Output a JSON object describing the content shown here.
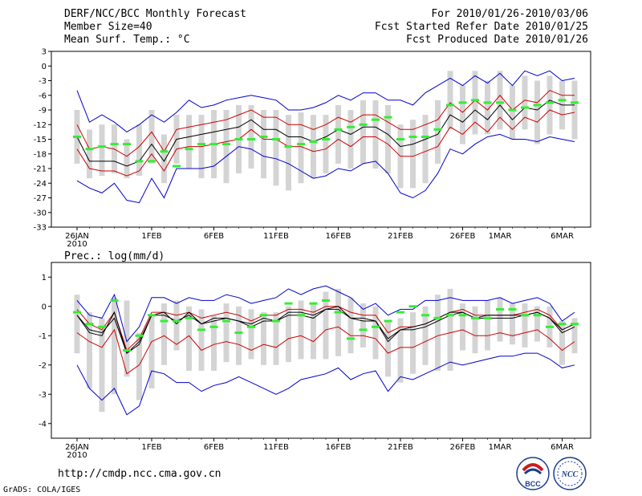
{
  "header": {
    "left": [
      "DERF/NCC/BCC Monthly Forecast",
      "Member Size=40",
      "Mean Surf. Temp.: °C"
    ],
    "right": [
      "For 2010/01/26-2010/03/06",
      "Fcst Started Refer Date 2010/01/25",
      "Fcst Produced Date 2010/01/26"
    ]
  },
  "footer": {
    "url": "http://cmdp.ncc.cma.gov.cn",
    "credit": "GrADS: COLA/IGES",
    "logo_left_text": "BCC",
    "logo_right_text": "NCC"
  },
  "colors": {
    "envelope": "#0000cc",
    "spread": "#cc0000",
    "mean": "#000000",
    "observed": "#33ee33",
    "boxes": "#d4d4d4"
  },
  "chart_data": [
    {
      "type": "line",
      "title": "Mean Surf. Temp.: °C",
      "ylim": [
        -33,
        3
      ],
      "yticks": [
        3,
        0,
        -3,
        -6,
        -9,
        -12,
        -15,
        -18,
        -21,
        -24,
        -27,
        -30,
        -33
      ],
      "xlim": [
        0,
        40
      ],
      "xticks": [
        {
          "day": 0,
          "label": "26JAN",
          "sub": "2010"
        },
        {
          "day": 6,
          "label": "1FEB"
        },
        {
          "day": 11,
          "label": "6FEB"
        },
        {
          "day": 16,
          "label": "11FEB"
        },
        {
          "day": 21,
          "label": "16FEB"
        },
        {
          "day": 26,
          "label": "21FEB"
        },
        {
          "day": 31,
          "label": "26FEB"
        },
        {
          "day": 34,
          "label": "1MAR"
        },
        {
          "day": 39,
          "label": "6MAR"
        }
      ],
      "series": [
        {
          "name": "ensemble max",
          "color": "#0000cc",
          "values": [
            -5,
            -11.5,
            -10,
            -11.5,
            -13.5,
            -12,
            -10,
            -11.5,
            -9.5,
            -7,
            -8.5,
            -8,
            -7,
            -6.5,
            -6,
            -6.5,
            -7,
            -9,
            -9,
            -8.5,
            -7.5,
            -6,
            -7,
            -5.5,
            -5.5,
            -7,
            -7,
            -8,
            -5.5,
            -4,
            -2.5,
            -4,
            -2,
            -3.5,
            -1.5,
            -4,
            -1,
            -2,
            -1,
            -3,
            -2.5
          ]
        },
        {
          "name": "spread upper",
          "color": "#cc0000",
          "values": [
            -12,
            -17,
            -16.5,
            -17,
            -18.5,
            -16.5,
            -13.5,
            -17.5,
            -13,
            -12.5,
            -12,
            -11.5,
            -11,
            -10,
            -9,
            -10.5,
            -10.5,
            -12,
            -12,
            -13,
            -12,
            -10.5,
            -11.5,
            -10,
            -10,
            -11.5,
            -13,
            -13,
            -12,
            -11,
            -7.5,
            -9.5,
            -7,
            -9,
            -6,
            -9,
            -7,
            -7.5,
            -5,
            -6,
            -6
          ]
        },
        {
          "name": "ensemble mean",
          "color": "#000000",
          "values": [
            -14.5,
            -19.5,
            -19.5,
            -19.5,
            -20.5,
            -19.5,
            -16,
            -19.5,
            -15,
            -14.5,
            -14,
            -13.5,
            -13,
            -12.5,
            -11,
            -13,
            -13,
            -14.5,
            -14.5,
            -15.5,
            -14.5,
            -13,
            -14,
            -12.5,
            -12.5,
            -14,
            -16.5,
            -16,
            -15,
            -14,
            -10,
            -11.5,
            -9,
            -11,
            -8,
            -11,
            -8.5,
            -9,
            -7,
            -8,
            -8
          ]
        },
        {
          "name": "spread lower",
          "color": "#cc0000",
          "values": [
            -17,
            -21,
            -21.5,
            -21.5,
            -22.5,
            -21.5,
            -18,
            -21.5,
            -17,
            -16.5,
            -16.5,
            -16,
            -15.5,
            -15,
            -13,
            -15,
            -15,
            -16.5,
            -16.5,
            -17.5,
            -17,
            -15,
            -16.5,
            -14.5,
            -14.5,
            -16,
            -18.5,
            -18.5,
            -17.5,
            -16.5,
            -12.5,
            -14,
            -11.5,
            -13.5,
            -10.5,
            -13,
            -10.5,
            -11.5,
            -9,
            -10,
            -9.5
          ]
        },
        {
          "name": "ensemble min",
          "color": "#0000cc",
          "values": [
            -23.5,
            -25,
            -26,
            -24,
            -27.5,
            -28,
            -23,
            -27,
            -21,
            -21,
            -21,
            -20.5,
            -18.5,
            -16.5,
            -17,
            -18.5,
            -19,
            -20,
            -21.5,
            -23,
            -22.5,
            -21,
            -21.5,
            -20,
            -19.5,
            -22,
            -26,
            -27,
            -25.5,
            -22,
            -17,
            -18,
            -16,
            -14.5,
            -14,
            -15,
            -15,
            -15.5,
            -14.5,
            -15,
            -15.5
          ]
        }
      ],
      "boxes": [
        {
          "low": -20,
          "high": -9
        },
        {
          "low": -23,
          "high": -13
        },
        {
          "low": -22.5,
          "high": -12
        },
        {
          "low": -22,
          "high": -12
        },
        {
          "low": -23,
          "high": -15
        },
        {
          "low": -22.5,
          "high": -12
        },
        {
          "low": -20,
          "high": -9
        },
        {
          "low": -24,
          "high": -14
        },
        {
          "low": -20,
          "high": -10
        },
        {
          "low": -21,
          "high": -10
        },
        {
          "low": -23,
          "high": -10
        },
        {
          "low": -23,
          "high": -9
        },
        {
          "low": -24,
          "high": -9
        },
        {
          "low": -22,
          "high": -8
        },
        {
          "low": -21,
          "high": -8
        },
        {
          "low": -23,
          "high": -9
        },
        {
          "low": -24.5,
          "high": -9
        },
        {
          "low": -25.5,
          "high": -10
        },
        {
          "low": -24,
          "high": -9.5
        },
        {
          "low": -23,
          "high": -10
        },
        {
          "low": -22,
          "high": -10
        },
        {
          "low": -20,
          "high": -8
        },
        {
          "low": -21,
          "high": -9
        },
        {
          "low": -20,
          "high": -7
        },
        {
          "low": -21,
          "high": -7
        },
        {
          "low": -22,
          "high": -8
        },
        {
          "low": -25,
          "high": -12
        },
        {
          "low": -25,
          "high": -11
        },
        {
          "low": -24,
          "high": -10
        },
        {
          "low": -20,
          "high": -7
        },
        {
          "low": -13,
          "high": -1
        },
        {
          "low": -16,
          "high": -4
        },
        {
          "low": -14,
          "high": -1
        },
        {
          "low": -14,
          "high": -3
        },
        {
          "low": -13,
          "high": -1
        },
        {
          "low": -15,
          "high": -4
        },
        {
          "low": -13,
          "high": -2
        },
        {
          "low": -16,
          "high": -3
        },
        {
          "low": -14,
          "high": -2
        },
        {
          "low": -13,
          "high": -3
        },
        {
          "low": -15,
          "high": -3
        }
      ],
      "observed": [
        -14.5,
        -17,
        -16.5,
        -16,
        -16,
        -19.5,
        -19.5,
        -17.5,
        -20.5,
        -17,
        -16,
        -16,
        -16,
        -15,
        -15,
        -14.5,
        -15,
        -16.5,
        -16,
        -15.5,
        -15,
        -13,
        -12.5,
        -12,
        -11,
        -10.5,
        -15,
        -14.5,
        -14.5,
        -13,
        -8,
        -7.5,
        -7,
        -7.5,
        -7.5,
        -9,
        -8.5,
        -8,
        -7.5,
        -7,
        -7.5
      ]
    },
    {
      "type": "line",
      "title": "Prec.: log(mm/d)",
      "ylim": [
        -4.5,
        1.5
      ],
      "yticks": [
        1,
        0,
        -1,
        -2,
        -3,
        -4
      ],
      "xlim": [
        0,
        40
      ],
      "xticks": [
        {
          "day": 0,
          "label": "26JAN",
          "sub": "2010"
        },
        {
          "day": 6,
          "label": "1FEB"
        },
        {
          "day": 11,
          "label": "6FEB"
        },
        {
          "day": 16,
          "label": "11FEB"
        },
        {
          "day": 21,
          "label": "16FEB"
        },
        {
          "day": 26,
          "label": "21FEB"
        },
        {
          "day": 31,
          "label": "26FEB"
        },
        {
          "day": 34,
          "label": "1MAR"
        },
        {
          "day": 39,
          "label": "6MAR"
        }
      ],
      "series": [
        {
          "name": "ensemble max",
          "color": "#0000cc",
          "values": [
            0.2,
            -0.3,
            -0.4,
            0.4,
            -1.2,
            -0.7,
            0.3,
            0.3,
            0.1,
            0.3,
            0.2,
            0.2,
            0.4,
            0.3,
            0.1,
            0.2,
            0.3,
            0.6,
            0.4,
            0.6,
            0.7,
            0.5,
            0.3,
            -0.1,
            0.1,
            -0.3,
            -0.1,
            -0.1,
            0.2,
            0.2,
            0.3,
            0.2,
            0.2,
            0.2,
            0.3,
            0.1,
            0.2,
            0.3,
            0.1,
            -0.5,
            -0.2
          ]
        },
        {
          "name": "spread upper",
          "color": "#cc0000",
          "values": [
            -0.1,
            -0.6,
            -0.8,
            -0.2,
            -1.5,
            -1.1,
            -0.2,
            -0.2,
            -0.3,
            -0.2,
            -0.4,
            -0.3,
            -0.2,
            -0.3,
            -0.5,
            -0.3,
            -0.3,
            -0.1,
            -0.1,
            -0.2,
            0,
            0,
            -0.2,
            -0.3,
            -0.3,
            -0.9,
            -0.7,
            -0.7,
            -0.6,
            -0.4,
            -0.2,
            -0.1,
            -0.3,
            -0.3,
            -0.3,
            -0.3,
            -0.2,
            -0.1,
            -0.3,
            -0.8,
            -0.6
          ]
        },
        {
          "name": "ensemble mean",
          "color": "#000000",
          "values": [
            -0.3,
            -0.8,
            -0.9,
            -0.4,
            -1.6,
            -1.3,
            -0.3,
            -0.3,
            -0.5,
            -0.3,
            -0.6,
            -0.5,
            -0.4,
            -0.5,
            -0.7,
            -0.5,
            -0.5,
            -0.3,
            -0.3,
            -0.4,
            -0.1,
            -0.1,
            -0.4,
            -0.5,
            -0.5,
            -1.1,
            -0.8,
            -0.8,
            -0.7,
            -0.5,
            -0.3,
            -0.2,
            -0.4,
            -0.4,
            -0.4,
            -0.4,
            -0.3,
            -0.2,
            -0.4,
            -0.9,
            -0.7
          ]
        },
        {
          "name": "spread lower",
          "color": "#cc0000",
          "values": [
            -0.9,
            -1.2,
            -1.4,
            -0.8,
            -2.3,
            -2,
            -1.2,
            -1,
            -1.3,
            -1,
            -1.5,
            -1.3,
            -1.2,
            -1.3,
            -1.5,
            -1.3,
            -1.4,
            -1.1,
            -1,
            -1.2,
            -0.8,
            -0.7,
            -1,
            -1,
            -1.1,
            -1.6,
            -1.4,
            -1.4,
            -1.2,
            -1,
            -0.9,
            -0.8,
            -1,
            -1,
            -0.9,
            -1,
            -0.9,
            -0.8,
            -1.1,
            -1.5,
            -1.2
          ]
        },
        {
          "name": "ensemble min",
          "color": "#0000cc",
          "values": [
            -2,
            -2.8,
            -3.2,
            -2.8,
            -3.7,
            -3.4,
            -2.2,
            -2.3,
            -2.6,
            -2.6,
            -2.9,
            -2.7,
            -2.6,
            -2.4,
            -2.6,
            -2.8,
            -3,
            -2.8,
            -2.5,
            -2.4,
            -2.3,
            -2.1,
            -2.5,
            -2.3,
            -2.2,
            -2.9,
            -2.4,
            -2.5,
            -2.3,
            -2.1,
            -1.9,
            -2,
            -1.9,
            -1.8,
            -1.7,
            -1.7,
            -1.6,
            -1.6,
            -1.8,
            -2.1,
            -2
          ]
        },
        {
          "name": "observed mean",
          "color": "#000000",
          "values": [
            -0.3,
            -0.9,
            -1,
            -0.2,
            -1.6,
            -1.2,
            -0.3,
            -0.2,
            -0.6,
            -0.2,
            -0.6,
            -0.4,
            -0.4,
            -0.5,
            -0.6,
            -0.4,
            -0.5,
            -0.2,
            -0.2,
            -0.3,
            -0.1,
            0,
            -0.4,
            -0.4,
            -0.5,
            -1.2,
            -0.8,
            -0.7,
            -0.6,
            -0.4,
            -0.2,
            -0.2,
            -0.4,
            -0.3,
            -0.3,
            -0.3,
            -0.3,
            -0.2,
            -0.4,
            -0.8,
            -0.6
          ]
        }
      ],
      "boxes": [
        {
          "low": -1.6,
          "high": 0.4
        },
        {
          "low": -2.8,
          "high": -0.2
        },
        {
          "low": -3.6,
          "high": -0.4
        },
        {
          "low": -3,
          "high": 0.3
        },
        {
          "low": -2.4,
          "high": 0.2
        },
        {
          "low": -3.2,
          "high": -0.9
        },
        {
          "low": -2.8,
          "high": -0.3
        },
        {
          "low": -2,
          "high": 0.1
        },
        {
          "low": -1.5,
          "high": 0.2
        },
        {
          "low": -2.2,
          "high": 0
        },
        {
          "low": -2.2,
          "high": -0.1
        },
        {
          "low": -2.2,
          "high": -0.3
        },
        {
          "low": -1.9,
          "high": 0.1
        },
        {
          "low": -2,
          "high": 0
        },
        {
          "low": -1.8,
          "high": -0.1
        },
        {
          "low": -2,
          "high": -0.2
        },
        {
          "low": -2,
          "high": -0.2
        },
        {
          "low": -1.9,
          "high": 0
        },
        {
          "low": -1.8,
          "high": 0.2
        },
        {
          "low": -1.8,
          "high": 0.1
        },
        {
          "low": -1.8,
          "high": 0.5
        },
        {
          "low": -1.7,
          "high": 0.6
        },
        {
          "low": -1.6,
          "high": 0.3
        },
        {
          "low": -1.4,
          "high": 0.1
        },
        {
          "low": -1.8,
          "high": 0
        },
        {
          "low": -2.4,
          "high": -0.5
        },
        {
          "low": -2.6,
          "high": -0.4
        },
        {
          "low": -2.3,
          "high": -0.2
        },
        {
          "low": -2,
          "high": 0
        },
        {
          "low": -2.2,
          "high": 0.4
        },
        {
          "low": -2.2,
          "high": 0.6
        },
        {
          "low": -1.5,
          "high": 0.1
        },
        {
          "low": -1.6,
          "high": 0
        },
        {
          "low": -1.5,
          "high": 0.2
        },
        {
          "low": -1.2,
          "high": 0.3
        },
        {
          "low": -1.3,
          "high": 0.1
        },
        {
          "low": -1.4,
          "high": 0.1
        },
        {
          "low": -1.2,
          "high": 0
        },
        {
          "low": -1.4,
          "high": 0
        },
        {
          "low": -2,
          "high": -0.5
        },
        {
          "low": -1.6,
          "high": -0.4
        }
      ],
      "observed": [
        -0.2,
        -0.6,
        -0.7,
        0.2,
        -1.5,
        -1,
        -0.3,
        -0.5,
        -0.5,
        -0.4,
        -0.8,
        -0.7,
        -0.5,
        -0.9,
        -0.7,
        -0.3,
        -0.5,
        0.1,
        -0.3,
        0.1,
        0.2,
        -0.2,
        -1.1,
        -0.8,
        -0.7,
        -0.5,
        -0.2,
        0,
        -0.3,
        -0.4,
        -0.3,
        -0.3,
        -0.4,
        -0.4,
        -0.1,
        -0.1,
        -0.3,
        -0.3,
        -0.7,
        -0.6,
        -0.6
      ]
    }
  ]
}
